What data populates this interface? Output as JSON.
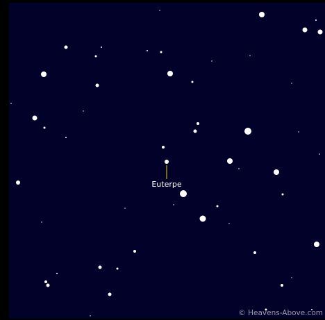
{
  "map": {
    "target_label": "Euterpe",
    "copyright": "© Heavens-Above.com"
  }
}
